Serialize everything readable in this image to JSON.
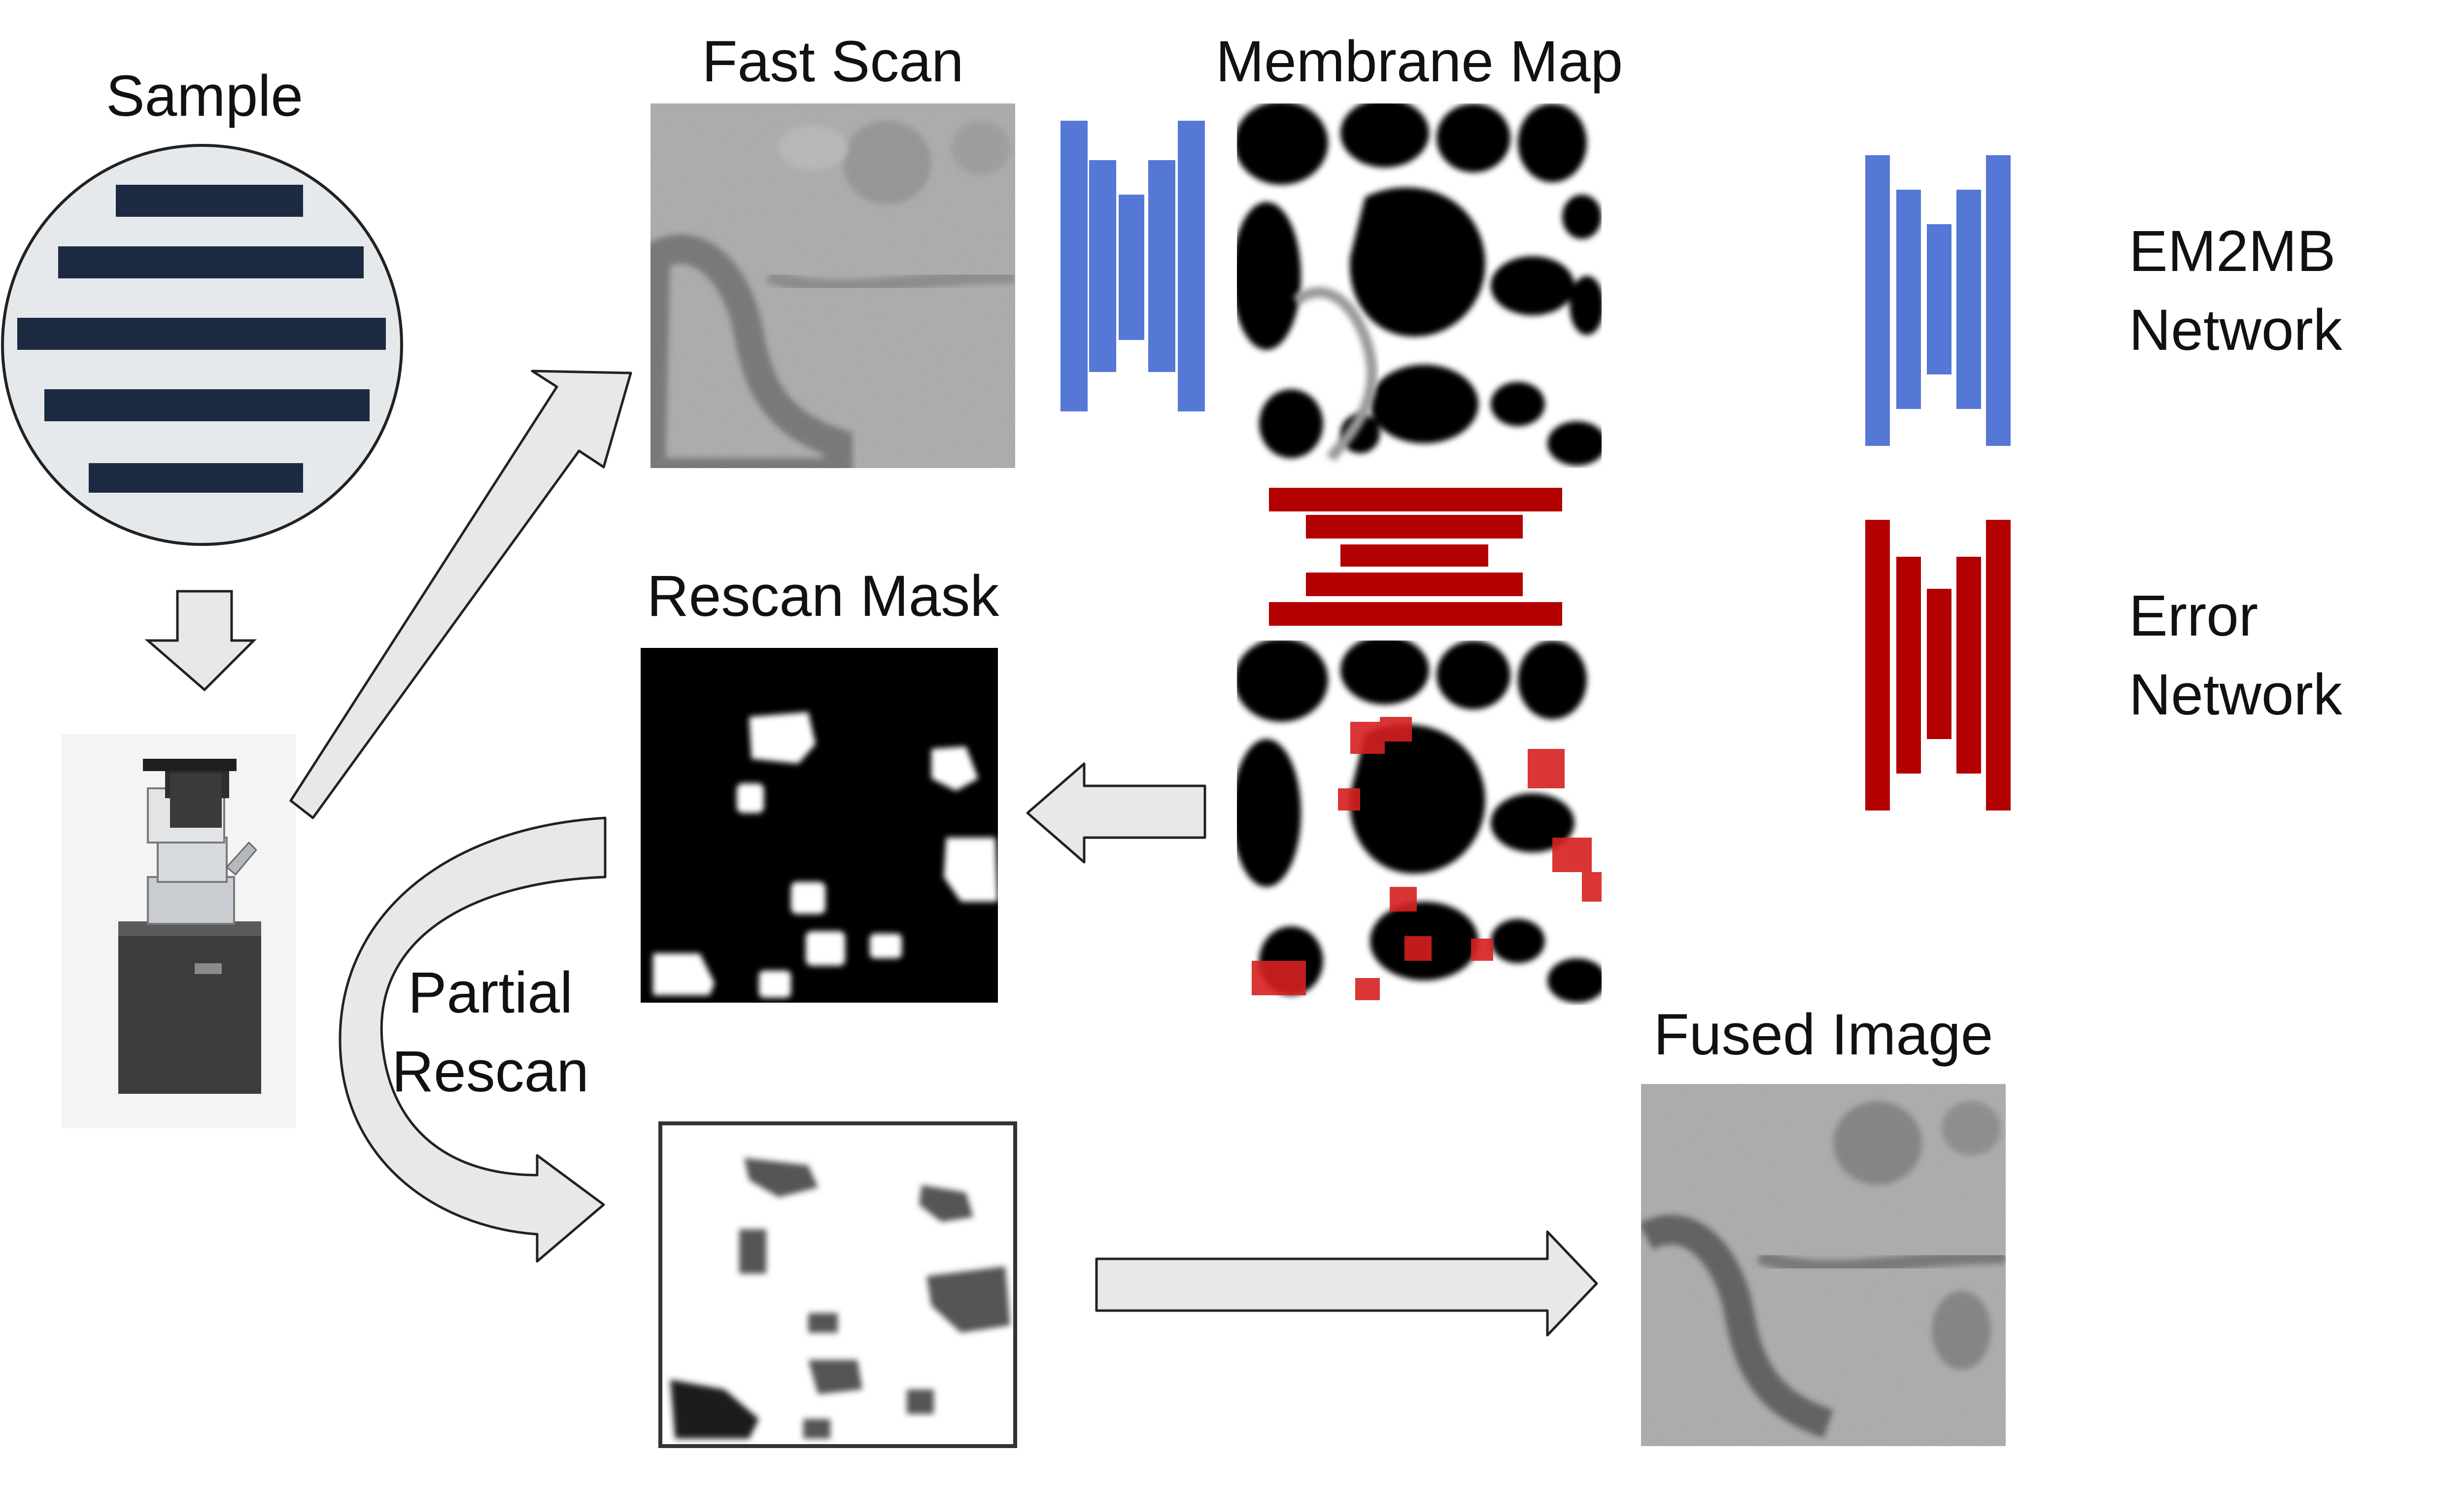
{
  "labels": {
    "sample": "Sample",
    "fast_scan": "Fast Scan",
    "membrane_map": "Membrane Map",
    "rescan_mask": "Rescan Mask",
    "partial_rescan_1": "Partial",
    "partial_rescan_2": "Rescan",
    "fused_image": "Fused Image"
  },
  "legend": [
    {
      "line1": "EM2MB",
      "line2": "Network",
      "color": "#5577d6"
    },
    {
      "line1": "Error",
      "line2": "Network",
      "color": "#b30000"
    }
  ],
  "colors": {
    "sample_fill": "#e6e9ec",
    "sample_bars": "#1b2a40",
    "arrow_fill": "#e8e8e8",
    "arrow_stroke": "#222222",
    "em2mb_blue": "#5577d6",
    "error_red": "#b30000",
    "overlay_red": "#d62020"
  },
  "icons": {
    "microscope": "electron-microscope-icon",
    "flow_arrows": "arrow-icon"
  }
}
